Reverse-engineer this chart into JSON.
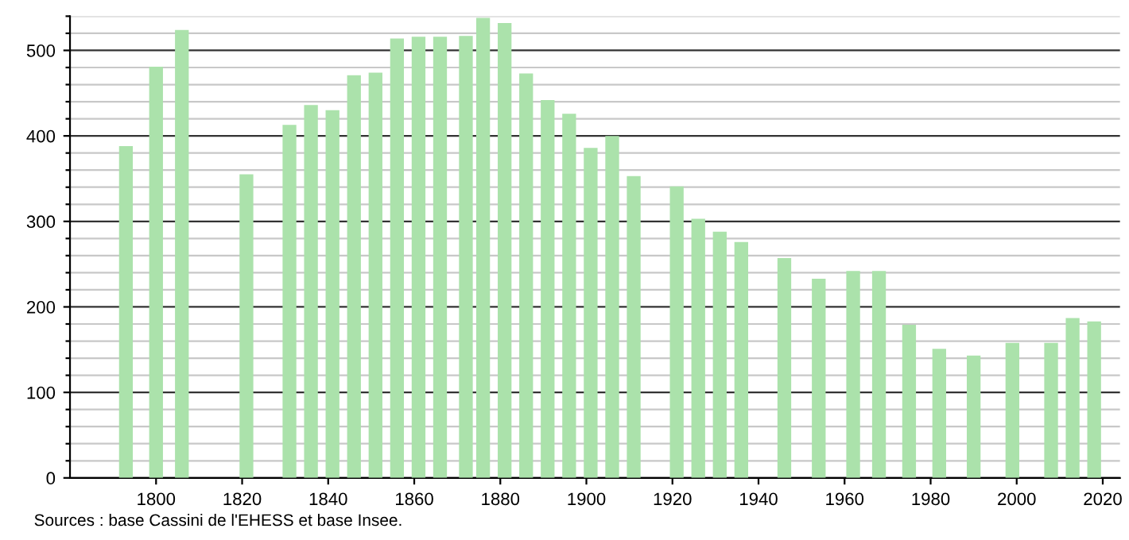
{
  "chart_data": {
    "type": "bar",
    "x": [
      1793,
      1800,
      1806,
      1821,
      1831,
      1836,
      1841,
      1846,
      1851,
      1856,
      1861,
      1866,
      1872,
      1876,
      1881,
      1886,
      1891,
      1896,
      1901,
      1906,
      1911,
      1921,
      1926,
      1931,
      1936,
      1946,
      1954,
      1962,
      1968,
      1975,
      1982,
      1990,
      1999,
      2008,
      2013,
      2018
    ],
    "values": [
      388,
      481,
      524,
      355,
      413,
      436,
      430,
      471,
      474,
      514,
      516,
      516,
      517,
      538,
      532,
      473,
      442,
      426,
      386,
      400,
      353,
      341,
      303,
      288,
      276,
      257,
      233,
      242,
      242,
      179,
      151,
      143,
      158,
      158,
      187,
      183
    ],
    "color": "#abe2ab",
    "xlim": [
      1780,
      2024
    ],
    "xticks": [
      1800,
      1820,
      1840,
      1860,
      1880,
      1900,
      1920,
      1940,
      1960,
      1980,
      2000,
      2020
    ],
    "ylim": [
      0,
      540
    ],
    "yticks": [
      0,
      {
        "value": 20,
        "label": null
      },
      {
        "value": 40,
        "label": null
      },
      {
        "value": 60,
        "label": null
      },
      {
        "value": 80,
        "label": null
      },
      100,
      {
        "value": 120,
        "label": null
      },
      {
        "value": 140,
        "label": null
      },
      {
        "value": 160,
        "label": null
      },
      {
        "value": 180,
        "label": null
      },
      200,
      {
        "value": 220,
        "label": null
      },
      {
        "value": 240,
        "label": null
      },
      {
        "value": 260,
        "label": null
      },
      {
        "value": 280,
        "label": null
      },
      300,
      {
        "value": 320,
        "label": null
      },
      {
        "value": 340,
        "label": null
      },
      {
        "value": 360,
        "label": null
      },
      {
        "value": 380,
        "label": null
      },
      400,
      {
        "value": 420,
        "label": null
      },
      {
        "value": 440,
        "label": null
      },
      {
        "value": 460,
        "label": null
      },
      {
        "value": 480,
        "label": null
      },
      500,
      {
        "value": 520,
        "label": null
      },
      {
        "value": 540,
        "label": null
      }
    ],
    "grid": "y",
    "annotations": [
      "Sources : base Cassini de l'EHESS et base Insee."
    ]
  }
}
